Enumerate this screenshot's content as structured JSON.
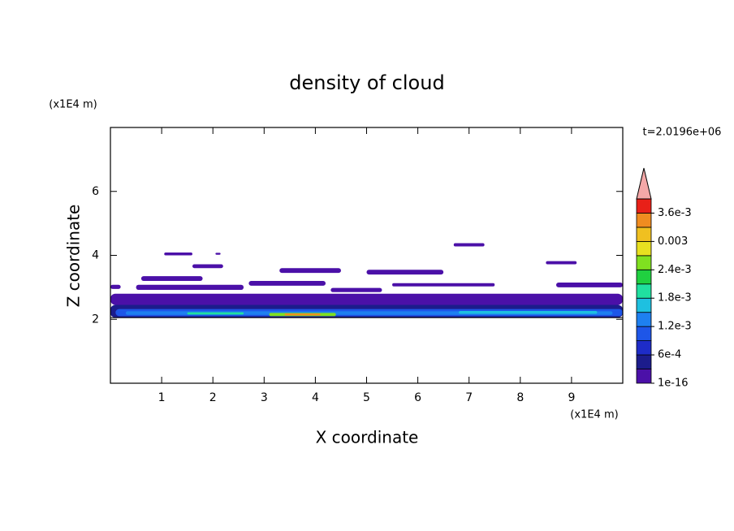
{
  "chart_data": {
    "type": "contour",
    "title": "density of cloud",
    "xlabel": "X coordinate",
    "ylabel": "Z coordinate",
    "xunit": "(x1E4 m)",
    "yunit": "(x1E4 m)",
    "annotation": "t=2.0196e+06",
    "xlim": [
      0,
      10
    ],
    "ylim": [
      0,
      8
    ],
    "xticks": [
      1,
      2,
      3,
      4,
      5,
      6,
      7,
      8,
      9
    ],
    "yticks": [
      2,
      4,
      6
    ],
    "clim": [
      0,
      0.0039
    ],
    "cticks": [
      {
        "value": 1e-16,
        "label": "1e-16"
      },
      {
        "value": 0.0006,
        "label": "6e-4"
      },
      {
        "value": 0.0012,
        "label": "1.2e-3"
      },
      {
        "value": 0.0018,
        "label": "1.8e-3"
      },
      {
        "value": 0.0024,
        "label": "2.4e-3"
      },
      0.003,
      {
        "value": 0.0036,
        "label": "3.6e-3"
      }
    ],
    "colors": [
      "#4b10a8",
      "#1c1c8c",
      "#1e2cc8",
      "#1e56e8",
      "#1e80f0",
      "#1ec0e0",
      "#20e0a0",
      "#20d040",
      "#80e020",
      "#e8e020",
      "#f0c020",
      "#f08c20",
      "#e82018"
    ],
    "extend_color": "#f4a8a8",
    "regions": [
      {
        "x": [
          0,
          10
        ],
        "z": [
          2.45,
          2.8
        ],
        "value": 1e-16
      },
      {
        "x": [
          0,
          10
        ],
        "z": [
          2.05,
          2.45
        ],
        "value": 0.0004
      },
      {
        "x": [
          0.1,
          10
        ],
        "z": [
          2.1,
          2.32
        ],
        "value": 0.001
      },
      {
        "x": [
          0.3,
          9.8
        ],
        "z": [
          2.14,
          2.25
        ],
        "value": 0.0014
      },
      {
        "x": [
          6.8,
          9.5
        ],
        "z": [
          2.17,
          2.26
        ],
        "value": 0.0017
      },
      {
        "x": [
          1.5,
          2.6
        ],
        "z": [
          2.15,
          2.22
        ],
        "value": 0.002
      },
      {
        "x": [
          3.1,
          4.4
        ],
        "z": [
          2.1,
          2.2
        ],
        "value": 0.0025
      },
      {
        "x": [
          3.4,
          4.1
        ],
        "z": [
          2.12,
          2.18
        ],
        "value": 0.0033
      },
      {
        "x": [
          1.05,
          1.6
        ],
        "z": [
          4.0,
          4.09
        ],
        "value": 1e-16
      },
      {
        "x": [
          2.05,
          2.15
        ],
        "z": [
          4.02,
          4.08
        ],
        "value": 1e-16
      },
      {
        "x": [
          1.6,
          2.2
        ],
        "z": [
          3.6,
          3.72
        ],
        "value": 1e-16
      },
      {
        "x": [
          0.6,
          1.8
        ],
        "z": [
          3.2,
          3.35
        ],
        "value": 1e-16
      },
      {
        "x": [
          0,
          0.2
        ],
        "z": [
          2.95,
          3.08
        ],
        "value": 1e-16
      },
      {
        "x": [
          0.5,
          2.6
        ],
        "z": [
          2.92,
          3.08
        ],
        "value": 1e-16
      },
      {
        "x": [
          3.3,
          4.5
        ],
        "z": [
          3.45,
          3.6
        ],
        "value": 1e-16
      },
      {
        "x": [
          5.0,
          6.5
        ],
        "z": [
          3.4,
          3.55
        ],
        "value": 1e-16
      },
      {
        "x": [
          6.7,
          7.3
        ],
        "z": [
          4.28,
          4.38
        ],
        "value": 1e-16
      },
      {
        "x": [
          8.5,
          9.1
        ],
        "z": [
          3.72,
          3.82
        ],
        "value": 1e-16
      },
      {
        "x": [
          8.7,
          10
        ],
        "z": [
          3.0,
          3.15
        ],
        "value": 1e-16
      },
      {
        "x": [
          2.7,
          4.2
        ],
        "z": [
          3.05,
          3.2
        ],
        "value": 1e-16
      },
      {
        "x": [
          5.5,
          7.5
        ],
        "z": [
          3.03,
          3.13
        ],
        "value": 1e-16
      },
      {
        "x": [
          4.3,
          5.3
        ],
        "z": [
          2.85,
          2.98
        ],
        "value": 1e-16
      }
    ]
  }
}
